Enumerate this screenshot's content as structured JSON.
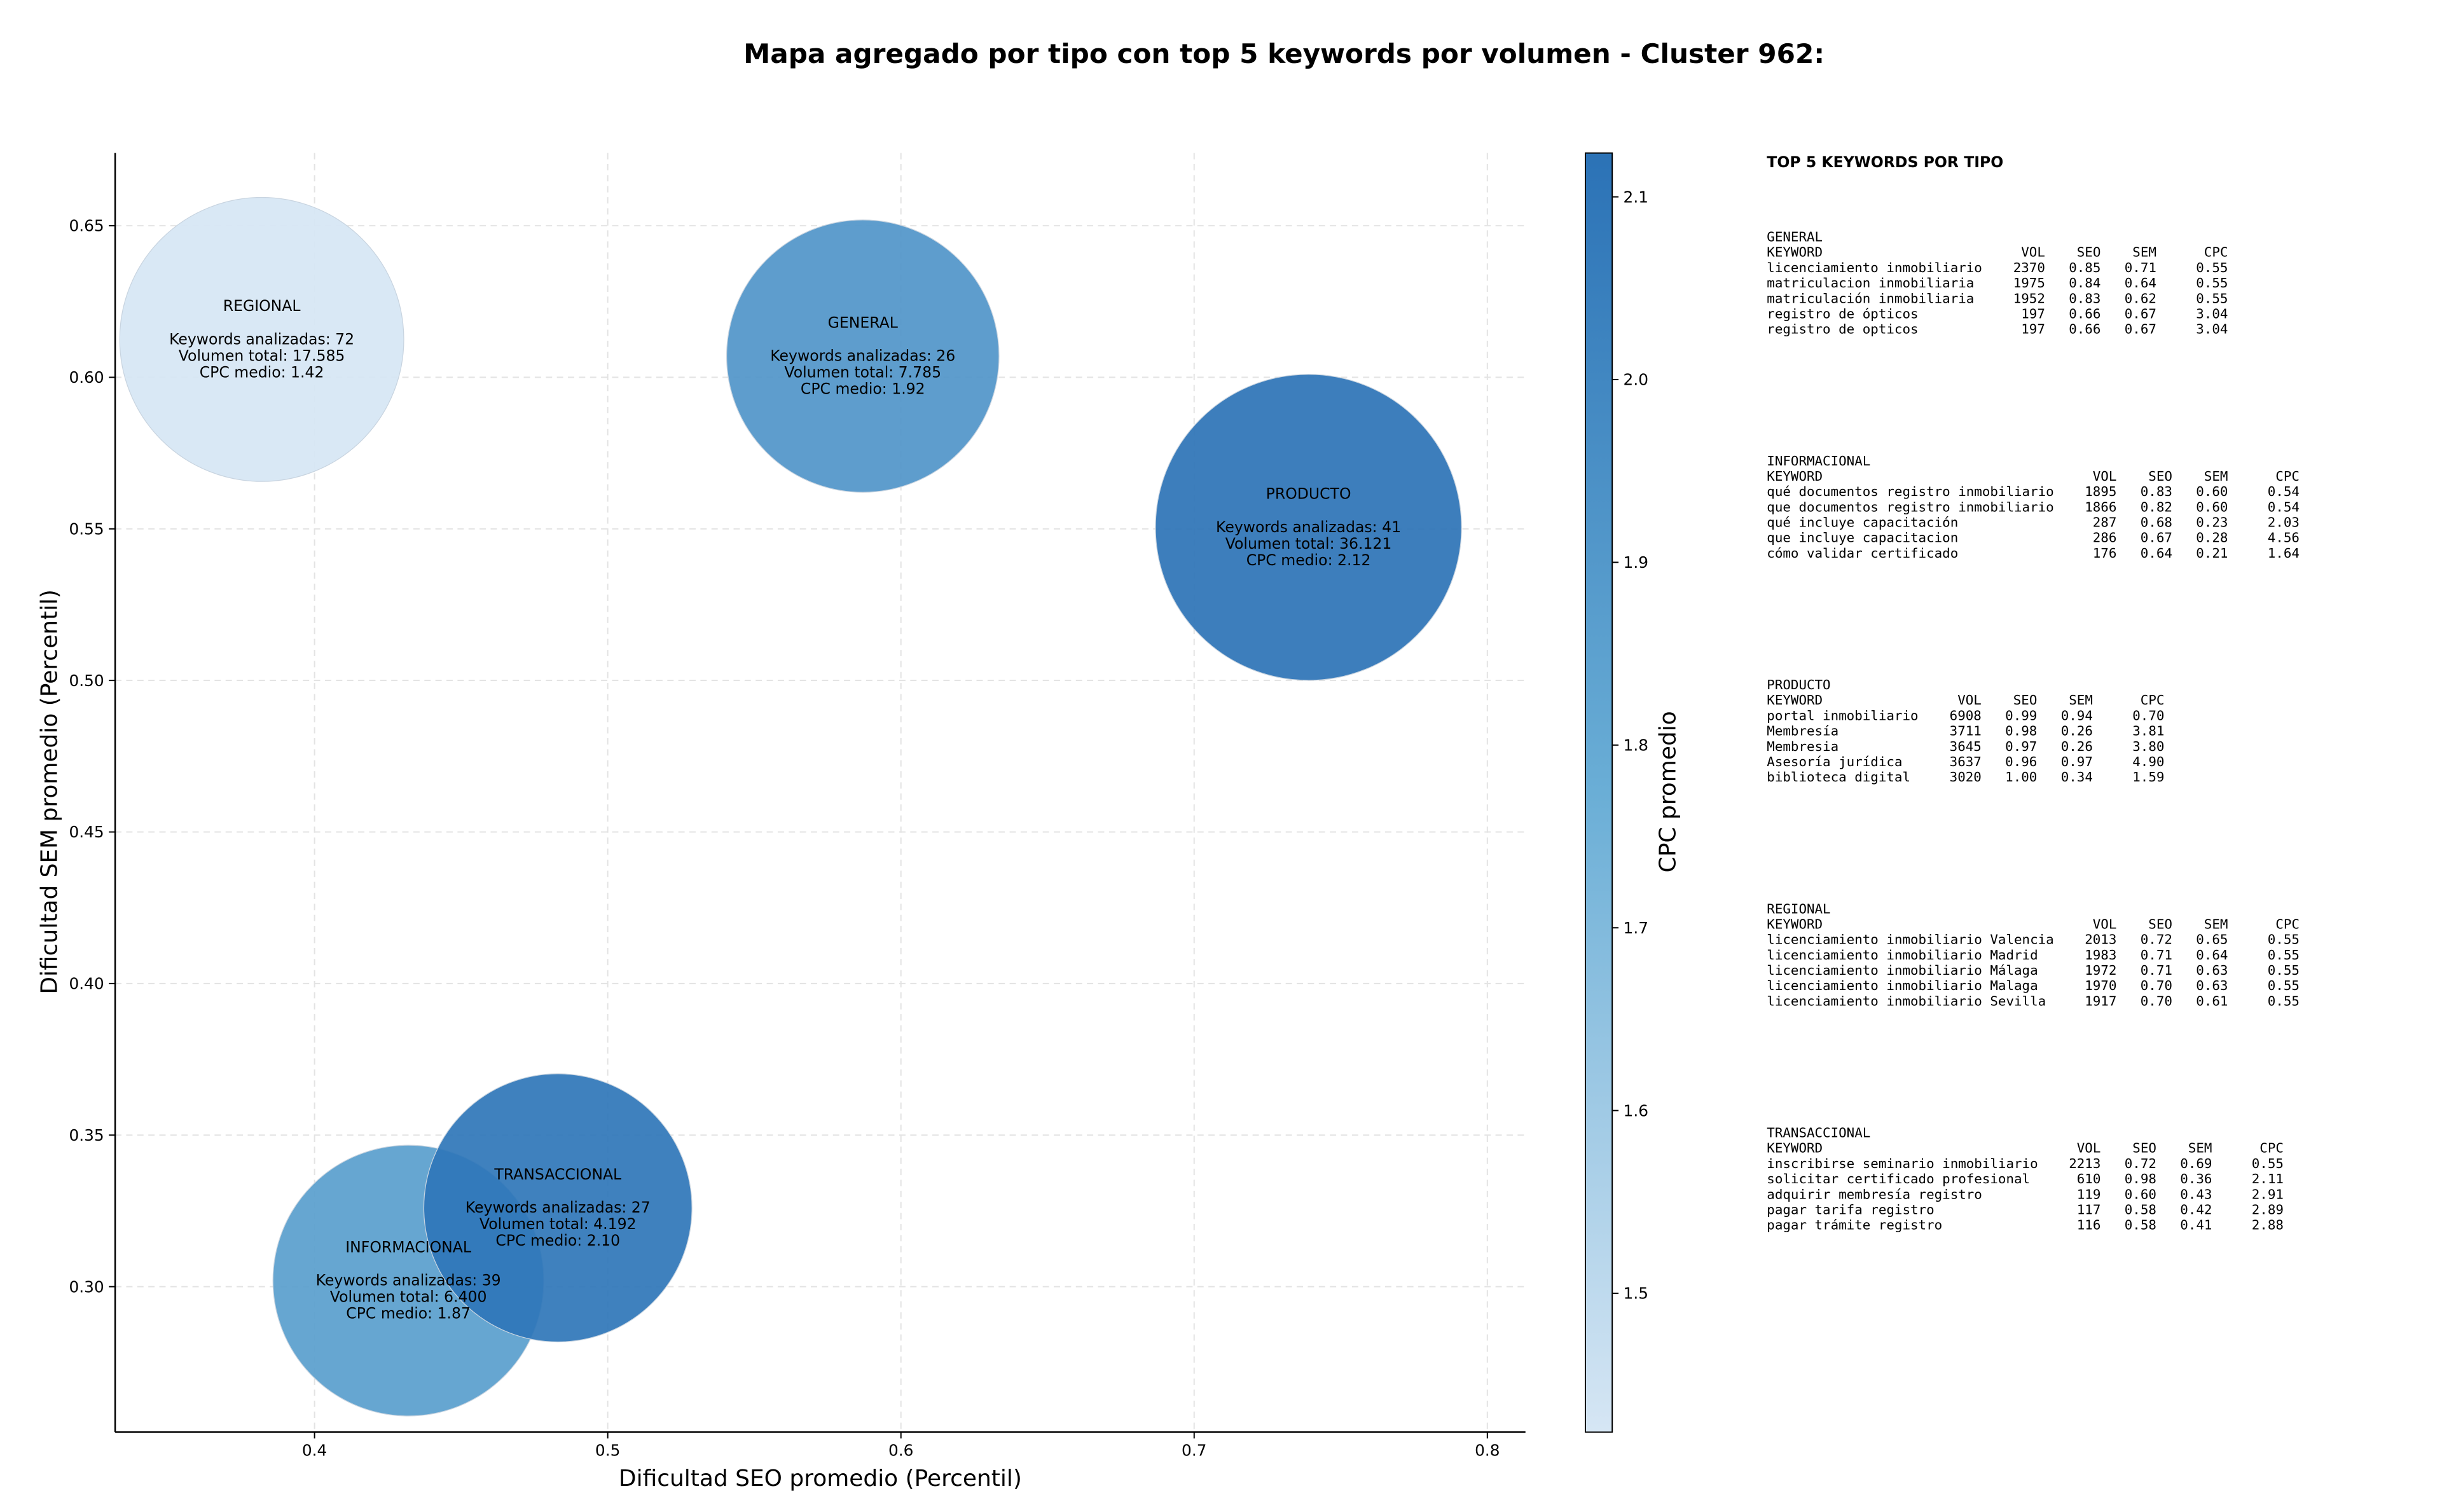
{
  "chart_data": {
    "type": "bubble",
    "title": "Mapa agregado por tipo con top 5 keywords por volumen - Cluster 962:",
    "x_label": "Dificultad SEO promedio (Percentil)",
    "y_label": "Dificultad SEM promedio (Percentil)",
    "xlim": [
      0.332,
      0.813
    ],
    "ylim": [
      0.252,
      0.674
    ],
    "xticks": [
      0.4,
      0.5,
      0.6,
      0.7,
      0.8
    ],
    "yticks": [
      {
        "value": 0.3,
        "label": "0.30"
      },
      0.35,
      {
        "value": 0.4,
        "label": "0.40"
      },
      0.45,
      {
        "value": 0.5,
        "label": "0.50"
      },
      0.55,
      {
        "value": 0.6,
        "label": "0.60"
      },
      0.65
    ],
    "grid": true,
    "colorbar": {
      "label": "CPC promedio",
      "lim": [
        1.424,
        2.124
      ],
      "ticks": [
        1.5,
        1.6,
        1.7,
        1.8,
        1.9,
        {
          "value": 2.0,
          "label": "2.0"
        },
        2.1
      ],
      "colormap": [
        "#d6e6f4",
        "#6aaed6",
        "#2b72b6"
      ]
    },
    "points": [
      {
        "name": "REGIONAL",
        "x": 0.382,
        "y": 0.6125,
        "size": 17585,
        "cpc": 1.42,
        "lines": [
          "Keywords analizadas: 72",
          "Volumen total: 17.585",
          "CPC medio: 1.42"
        ]
      },
      {
        "name": "GENERAL",
        "x": 0.587,
        "y": 0.607,
        "size": 7785,
        "cpc": 1.92,
        "lines": [
          "Keywords analizadas: 26",
          "Volumen total: 7.785",
          "CPC medio: 1.92"
        ]
      },
      {
        "name": "PRODUCTO",
        "x": 0.739,
        "y": 0.5505,
        "size": 36121,
        "cpc": 2.12,
        "lines": [
          "Keywords analizadas: 41",
          "Volumen total: 36.121",
          "CPC medio: 2.12"
        ]
      },
      {
        "name": "INFORMACIONAL",
        "x": 0.432,
        "y": 0.302,
        "size": 6400,
        "cpc": 1.87,
        "lines": [
          "Keywords analizadas: 39",
          "Volumen total: 6.400",
          "CPC medio: 1.87"
        ]
      },
      {
        "name": "TRANSACCIONAL",
        "x": 0.483,
        "y": 0.326,
        "size": 4192,
        "cpc": 2.1,
        "lines": [
          "Keywords analizadas: 27",
          "Volumen total: 4.192",
          "CPC medio: 2.10"
        ]
      }
    ]
  },
  "side_panel": {
    "title": "TOP 5 KEYWORDS POR TIPO",
    "headers": [
      "KEYWORD",
      "VOL",
      "SEO",
      "SEM",
      "CPC"
    ],
    "sections": [
      {
        "title": "GENERAL",
        "rows": [
          [
            "licenciamiento inmobiliario",
            "2370",
            "0.85",
            "0.71",
            "0.55"
          ],
          [
            "matriculacion inmobiliaria",
            "1975",
            "0.84",
            "0.64",
            "0.55"
          ],
          [
            "matriculación inmobiliaria",
            "1952",
            "0.83",
            "0.62",
            "0.55"
          ],
          [
            "registro de ópticos",
            "197",
            "0.66",
            "0.67",
            "3.04"
          ],
          [
            "registro de opticos",
            "197",
            "0.66",
            "0.67",
            "3.04"
          ]
        ]
      },
      {
        "title": "INFORMACIONAL",
        "rows": [
          [
            "qué documentos registro inmobiliario",
            "1895",
            "0.83",
            "0.60",
            "0.54"
          ],
          [
            "que documentos registro inmobiliario",
            "1866",
            "0.82",
            "0.60",
            "0.54"
          ],
          [
            "qué incluye capacitación",
            "287",
            "0.68",
            "0.23",
            "2.03"
          ],
          [
            "que incluye capacitacion",
            "286",
            "0.67",
            "0.28",
            "4.56"
          ],
          [
            "cómo validar certificado",
            "176",
            "0.64",
            "0.21",
            "1.64"
          ]
        ]
      },
      {
        "title": "PRODUCTO",
        "rows": [
          [
            "portal inmobiliario",
            "6908",
            "0.99",
            "0.94",
            "0.70"
          ],
          [
            "Membresía",
            "3711",
            "0.98",
            "0.26",
            "3.81"
          ],
          [
            "Membresia",
            "3645",
            "0.97",
            "0.26",
            "3.80"
          ],
          [
            "Asesoría jurídica",
            "3637",
            "0.96",
            "0.97",
            "4.90"
          ],
          [
            "biblioteca digital",
            "3020",
            "1.00",
            "0.34",
            "1.59"
          ]
        ]
      },
      {
        "title": "REGIONAL",
        "rows": [
          [
            "licenciamiento inmobiliario Valencia",
            "2013",
            "0.72",
            "0.65",
            "0.55"
          ],
          [
            "licenciamiento inmobiliario Madrid",
            "1983",
            "0.71",
            "0.64",
            "0.55"
          ],
          [
            "licenciamiento inmobiliario Málaga",
            "1972",
            "0.71",
            "0.63",
            "0.55"
          ],
          [
            "licenciamiento inmobiliario Malaga",
            "1970",
            "0.70",
            "0.63",
            "0.55"
          ],
          [
            "licenciamiento inmobiliario Sevilla",
            "1917",
            "0.70",
            "0.61",
            "0.55"
          ]
        ]
      },
      {
        "title": "TRANSACCIONAL",
        "rows": [
          [
            "inscribirse seminario inmobiliario",
            "2213",
            "0.72",
            "0.69",
            "0.55"
          ],
          [
            "solicitar certificado profesional",
            "610",
            "0.98",
            "0.36",
            "2.11"
          ],
          [
            "adquirir membresía registro",
            "119",
            "0.60",
            "0.43",
            "2.91"
          ],
          [
            "pagar tarifa registro",
            "117",
            "0.58",
            "0.42",
            "2.89"
          ],
          [
            "pagar trámite registro",
            "116",
            "0.58",
            "0.41",
            "2.88"
          ]
        ]
      }
    ]
  }
}
